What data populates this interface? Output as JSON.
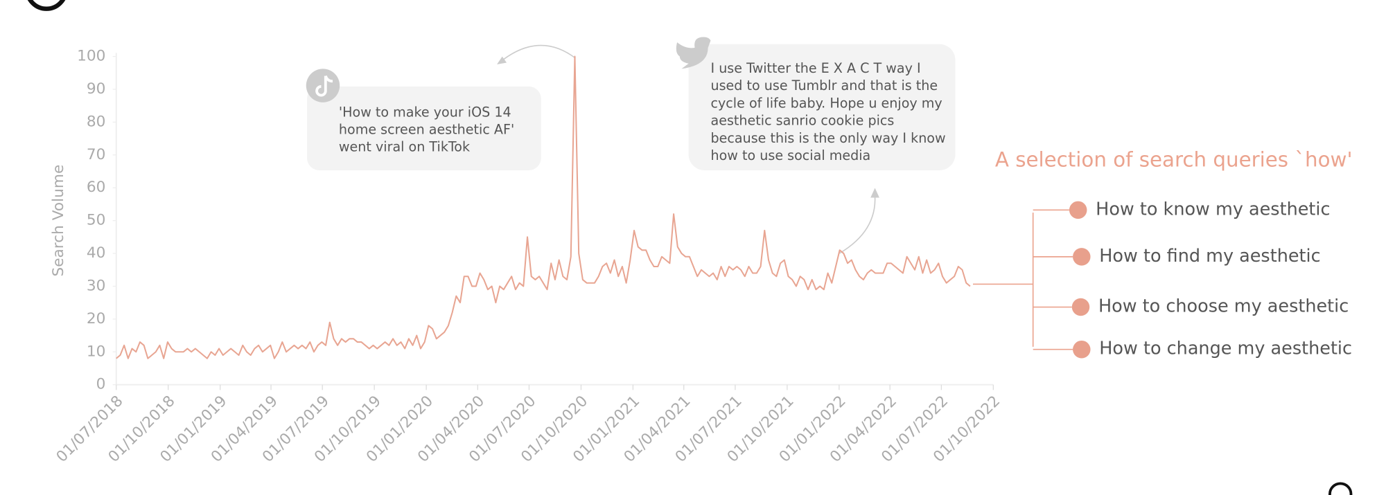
{
  "chart_data": {
    "type": "line",
    "ylabel": "Search Volume",
    "color": "#e8a592",
    "ylim": [
      0,
      100
    ],
    "yticks": [
      0,
      10,
      20,
      30,
      40,
      50,
      60,
      70,
      80,
      90,
      100
    ],
    "xlim": [
      "2018-07-01",
      "2022-10-01"
    ],
    "xticks": [
      {
        "value": "2018-07-01",
        "label": "01/07/2018"
      },
      {
        "value": "2018-10-01",
        "label": "01/10/2018"
      },
      {
        "value": "2019-01-01",
        "label": "01/01/2019"
      },
      {
        "value": "2019-04-01",
        "label": "01/04/2019"
      },
      {
        "value": "2019-07-01",
        "label": "01/07/2019"
      },
      {
        "value": "2019-10-01",
        "label": "01/10/2019"
      },
      {
        "value": "2020-01-01",
        "label": "01/01/2020"
      },
      {
        "value": "2020-04-01",
        "label": "01/04/2020"
      },
      {
        "value": "2020-07-01",
        "label": "01/07/2020"
      },
      {
        "value": "2020-10-01",
        "label": "01/10/2020"
      },
      {
        "value": "2021-01-01",
        "label": "01/01/2021"
      },
      {
        "value": "2021-04-01",
        "label": "01/04/2021"
      },
      {
        "value": "2021-07-01",
        "label": "01/07/2021"
      },
      {
        "value": "2021-10-01",
        "label": "01/10/2021"
      },
      {
        "value": "2022-01-01",
        "label": "01/01/2022"
      },
      {
        "value": "2022-04-01",
        "label": "01/04/2022"
      },
      {
        "value": "2022-07-01",
        "label": "01/07/2022"
      },
      {
        "value": "2022-10-01",
        "label": "01/10/2022"
      }
    ],
    "x": [
      "2018-07-01",
      "2018-07-08",
      "2018-07-15",
      "2018-07-22",
      "2018-07-29",
      "2018-08-05",
      "2018-08-12",
      "2018-08-19",
      "2018-08-26",
      "2018-09-02",
      "2018-09-09",
      "2018-09-16",
      "2018-09-23",
      "2018-09-30",
      "2018-10-07",
      "2018-10-14",
      "2018-10-21",
      "2018-10-28",
      "2018-11-04",
      "2018-11-11",
      "2018-11-18",
      "2018-11-25",
      "2018-12-02",
      "2018-12-09",
      "2018-12-16",
      "2018-12-23",
      "2018-12-30",
      "2019-01-06",
      "2019-01-13",
      "2019-01-20",
      "2019-01-27",
      "2019-02-03",
      "2019-02-10",
      "2019-02-17",
      "2019-02-24",
      "2019-03-03",
      "2019-03-10",
      "2019-03-17",
      "2019-03-24",
      "2019-03-31",
      "2019-04-07",
      "2019-04-14",
      "2019-04-21",
      "2019-04-28",
      "2019-05-05",
      "2019-05-12",
      "2019-05-19",
      "2019-05-26",
      "2019-06-02",
      "2019-06-09",
      "2019-06-16",
      "2019-06-23",
      "2019-06-30",
      "2019-07-07",
      "2019-07-14",
      "2019-07-21",
      "2019-07-28",
      "2019-08-04",
      "2019-08-11",
      "2019-08-18",
      "2019-08-25",
      "2019-09-01",
      "2019-09-08",
      "2019-09-15",
      "2019-09-22",
      "2019-09-29",
      "2019-10-06",
      "2019-10-13",
      "2019-10-20",
      "2019-10-27",
      "2019-11-03",
      "2019-11-10",
      "2019-11-17",
      "2019-11-24",
      "2019-12-01",
      "2019-12-08",
      "2019-12-15",
      "2019-12-22",
      "2019-12-29",
      "2020-01-05",
      "2020-01-12",
      "2020-01-19",
      "2020-01-26",
      "2020-02-02",
      "2020-02-09",
      "2020-02-16",
      "2020-02-23",
      "2020-03-01",
      "2020-03-08",
      "2020-03-15",
      "2020-03-22",
      "2020-03-29",
      "2020-04-05",
      "2020-04-12",
      "2020-04-19",
      "2020-04-26",
      "2020-05-03",
      "2020-05-10",
      "2020-05-17",
      "2020-05-24",
      "2020-05-31",
      "2020-06-07",
      "2020-06-14",
      "2020-06-21",
      "2020-06-28",
      "2020-07-05",
      "2020-07-12",
      "2020-07-19",
      "2020-07-26",
      "2020-08-02",
      "2020-08-09",
      "2020-08-16",
      "2020-08-23",
      "2020-08-30",
      "2020-09-06",
      "2020-09-13",
      "2020-09-20",
      "2020-09-27",
      "2020-10-04",
      "2020-10-11",
      "2020-10-18",
      "2020-10-25",
      "2020-11-01",
      "2020-11-08",
      "2020-11-15",
      "2020-11-22",
      "2020-11-29",
      "2020-12-06",
      "2020-12-13",
      "2020-12-20",
      "2020-12-27",
      "2021-01-03",
      "2021-01-10",
      "2021-01-17",
      "2021-01-24",
      "2021-01-31",
      "2021-02-07",
      "2021-02-14",
      "2021-02-21",
      "2021-02-28",
      "2021-03-07",
      "2021-03-14",
      "2021-03-21",
      "2021-03-28",
      "2021-04-04",
      "2021-04-11",
      "2021-04-18",
      "2021-04-25",
      "2021-05-02",
      "2021-05-09",
      "2021-05-16",
      "2021-05-23",
      "2021-05-30",
      "2021-06-06",
      "2021-06-13",
      "2021-06-20",
      "2021-06-27",
      "2021-07-04",
      "2021-07-11",
      "2021-07-18",
      "2021-07-25",
      "2021-08-01",
      "2021-08-08",
      "2021-08-15",
      "2021-08-22",
      "2021-08-29",
      "2021-09-05",
      "2021-09-12",
      "2021-09-19",
      "2021-09-26",
      "2021-10-03",
      "2021-10-10",
      "2021-10-17",
      "2021-10-24",
      "2021-10-31",
      "2021-11-07",
      "2021-11-14",
      "2021-11-21",
      "2021-11-28",
      "2021-12-05",
      "2021-12-12",
      "2021-12-19",
      "2021-12-26",
      "2022-01-02",
      "2022-01-09",
      "2022-01-16",
      "2022-01-23",
      "2022-01-30",
      "2022-02-06",
      "2022-02-13",
      "2022-02-20",
      "2022-02-27",
      "2022-03-06",
      "2022-03-13",
      "2022-03-20",
      "2022-03-27",
      "2022-04-03",
      "2022-04-10",
      "2022-04-17",
      "2022-04-24",
      "2022-05-01",
      "2022-05-08",
      "2022-05-15",
      "2022-05-22",
      "2022-05-29",
      "2022-06-05",
      "2022-06-12",
      "2022-06-19",
      "2022-06-26",
      "2022-07-03",
      "2022-07-10",
      "2022-07-17",
      "2022-07-24",
      "2022-07-31",
      "2022-08-07",
      "2022-08-14",
      "2022-08-21"
    ],
    "values": [
      8,
      9,
      12,
      8,
      11,
      10,
      13,
      12,
      8,
      9,
      10,
      12,
      8,
      13,
      11,
      10,
      10,
      10,
      11,
      10,
      11,
      10,
      9,
      8,
      10,
      9,
      11,
      9,
      10,
      11,
      10,
      9,
      12,
      10,
      9,
      11,
      12,
      10,
      11,
      12,
      8,
      10,
      13,
      10,
      11,
      12,
      11,
      12,
      11,
      13,
      10,
      12,
      13,
      12,
      19,
      14,
      12,
      14,
      13,
      14,
      14,
      13,
      13,
      12,
      11,
      12,
      11,
      12,
      13,
      12,
      14,
      12,
      13,
      11,
      14,
      12,
      15,
      11,
      13,
      18,
      17,
      14,
      15,
      16,
      18,
      22,
      27,
      25,
      33,
      33,
      30,
      30,
      34,
      32,
      29,
      30,
      25,
      30,
      29,
      31,
      33,
      29,
      31,
      30,
      45,
      33,
      32,
      33,
      31,
      29,
      37,
      32,
      38,
      33,
      32,
      39,
      100,
      40,
      32,
      31,
      31,
      31,
      33,
      36,
      37,
      34,
      38,
      33,
      36,
      31,
      38,
      47,
      42,
      41,
      41,
      38,
      36,
      36,
      39,
      38,
      37,
      52,
      42,
      40,
      39,
      39,
      36,
      33,
      35,
      34,
      33,
      34,
      32,
      36,
      33,
      36,
      35,
      36,
      35,
      33,
      36,
      34,
      34,
      36,
      47,
      38,
      34,
      33,
      37,
      38,
      33,
      32,
      30,
      33,
      32,
      29,
      32,
      29,
      30,
      29,
      34,
      31,
      36,
      41,
      40,
      37,
      38,
      35,
      33,
      32,
      34,
      35,
      34,
      34,
      34,
      37,
      37,
      36,
      35,
      34,
      39,
      37,
      35,
      39,
      34,
      38,
      34,
      35,
      37,
      33,
      31,
      32,
      33,
      36,
      35,
      31,
      30
    ],
    "annotations": [
      {
        "lines": [
          "'How to make your iOS 14",
          "home screen aesthetic AF'",
          "went viral on TikTok"
        ]
      },
      {
        "lines": [
          "I use Twitter the E X A C T way I",
          "used to use Tumblr and that is the",
          "cycle of life baby. Hope u enjoy my",
          "aesthetic sanrio cookie pics",
          "because this is the only way I know",
          "how to use social media"
        ]
      }
    ],
    "side_title": "A selection of search queries `how'",
    "side_items": [
      "How to know my aesthetic",
      "How to find my aesthetic",
      "How to choose my aesthetic",
      "How to change my aesthetic"
    ]
  }
}
